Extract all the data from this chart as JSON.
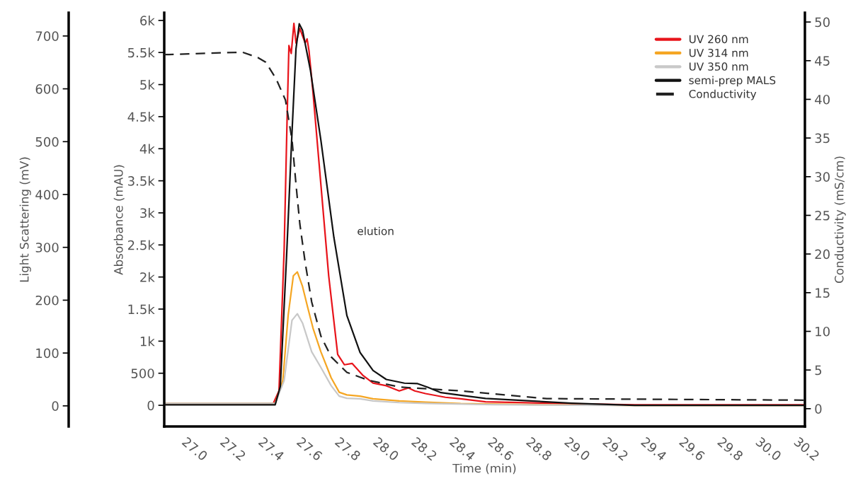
{
  "chart_data": {
    "type": "line",
    "xlabel": "Time (min)",
    "ylabel": "Absorbance (mAU)",
    "y2label": "Conductivity (mS/cm)",
    "y3label": "Light Scattering (mV)",
    "xlim": [
      26.88,
      30.23
    ],
    "xticks": [
      {
        "value": 27,
        "label": "27.0"
      },
      27.2,
      27.4,
      27.6,
      27.8,
      {
        "value": 28,
        "label": "28.0"
      },
      28.2,
      28.4,
      28.6,
      28.8,
      {
        "value": 29,
        "label": "29.0"
      },
      29.2,
      29.4,
      29.6,
      29.8,
      {
        "value": 30,
        "label": "30.0"
      },
      30.2
    ],
    "ylim": [
      -330,
      6120
    ],
    "yticks": [
      0,
      500,
      {
        "value": 1000,
        "label": "1k"
      },
      {
        "value": 1500,
        "label": "1.5k"
      },
      {
        "value": 2000,
        "label": "2k"
      },
      {
        "value": 2500,
        "label": "2.5k"
      },
      {
        "value": 3000,
        "label": "3k"
      },
      {
        "value": 3500,
        "label": "3.5k"
      },
      {
        "value": 4000,
        "label": "4k"
      },
      {
        "value": 4500,
        "label": "4.5k"
      },
      {
        "value": 5000,
        "label": "5k"
      },
      {
        "value": 5500,
        "label": "5.5k"
      },
      {
        "value": 6000,
        "label": "6k"
      }
    ],
    "y2lim": [
      -2.3,
      51.2
    ],
    "y2ticks": [
      0,
      5,
      10,
      15,
      20,
      25,
      30,
      35,
      40,
      45,
      50
    ],
    "y3lim": [
      -39,
      744
    ],
    "y3ticks": [
      0,
      100,
      200,
      300,
      400,
      500,
      600,
      700
    ],
    "grid": false,
    "legend": "top right",
    "line_style": "solid",
    "marker": "none",
    "annotations": [
      "elution"
    ],
    "series": [
      {
        "name": "UV 260 nm",
        "color": "#e8141b",
        "x": [
          26.88,
          27.45,
          27.48,
          27.507,
          27.523,
          27.532,
          27.544,
          27.558,
          27.569,
          27.589,
          27.617,
          27.627,
          27.637,
          27.658,
          27.699,
          27.74,
          27.787,
          27.822,
          27.863,
          27.918,
          27.972,
          28.041,
          28.109,
          28.157,
          28.19,
          28.246,
          28.35,
          28.43,
          28.56,
          29.01,
          29.34,
          30.23
        ],
        "values": [
          30,
          30,
          224,
          2425,
          4547,
          5608,
          5485,
          5954,
          5648,
          5873,
          5648,
          5711,
          5526,
          4873,
          3445,
          2018,
          794,
          632,
          652,
          469,
          346,
          305,
          224,
          272,
          224,
          183,
          125,
          101,
          55,
          25,
          7,
          7
        ]
      },
      {
        "name": "UV 314 nm",
        "color": "#f5a623",
        "x": [
          26.88,
          27.46,
          27.5,
          27.528,
          27.555,
          27.576,
          27.603,
          27.63,
          27.658,
          27.699,
          27.753,
          27.795,
          27.835,
          27.904,
          27.972,
          28.109,
          28.246,
          28.43,
          28.8,
          29.3,
          30.23
        ],
        "values": [
          30,
          30,
          386,
          1406,
          2018,
          2079,
          1854,
          1528,
          1202,
          835,
          428,
          203,
          162,
          142,
          101,
          68,
          49,
          27,
          10,
          0,
          0
        ]
      },
      {
        "name": "UV 350 nm",
        "color": "#c8c8c8",
        "x": [
          26.88,
          27.46,
          27.507,
          27.548,
          27.576,
          27.603,
          27.651,
          27.699,
          27.753,
          27.795,
          27.835,
          27.904,
          27.972,
          28.109,
          28.246,
          28.6,
          29.2,
          30.23
        ],
        "values": [
          30,
          30,
          386,
          1325,
          1427,
          1283,
          835,
          591,
          305,
          142,
          110,
          101,
          68,
          42,
          30,
          10,
          0,
          0
        ]
      },
      {
        "name": "semi-prep MALS",
        "color": "#111111",
        "axis": "y3",
        "x": [
          26.88,
          27.46,
          27.487,
          27.521,
          27.548,
          27.569,
          27.586,
          27.603,
          27.644,
          27.699,
          27.767,
          27.835,
          27.904,
          27.972,
          28.041,
          28.136,
          28.205,
          28.26,
          28.327,
          28.43,
          28.56,
          29.01,
          29.34,
          30.23
        ],
        "values": [
          2,
          2,
          37,
          294,
          517,
          676,
          723,
          711,
          636,
          503,
          319,
          171,
          101,
          67,
          50,
          43,
          42,
          35,
          25,
          20,
          14,
          5,
          1,
          1
        ]
      },
      {
        "name": "Conductivity",
        "color": "#222222",
        "axis": "y2",
        "line_style": "dashed",
        "x": [
          26.88,
          26.905,
          27.288,
          27.37,
          27.411,
          27.466,
          27.514,
          27.548,
          27.569,
          27.589,
          27.617,
          27.651,
          27.699,
          27.753,
          27.835,
          27.945,
          28.109,
          28.43,
          28.88,
          30.23
        ],
        "values": [
          45.8,
          45.8,
          46.1,
          45.4,
          44.8,
          42.6,
          39.9,
          34.8,
          29,
          23.9,
          18.9,
          13.8,
          9.4,
          6.7,
          4.7,
          3.7,
          2.8,
          2.3,
          1.3,
          1.1
        ]
      }
    ]
  }
}
